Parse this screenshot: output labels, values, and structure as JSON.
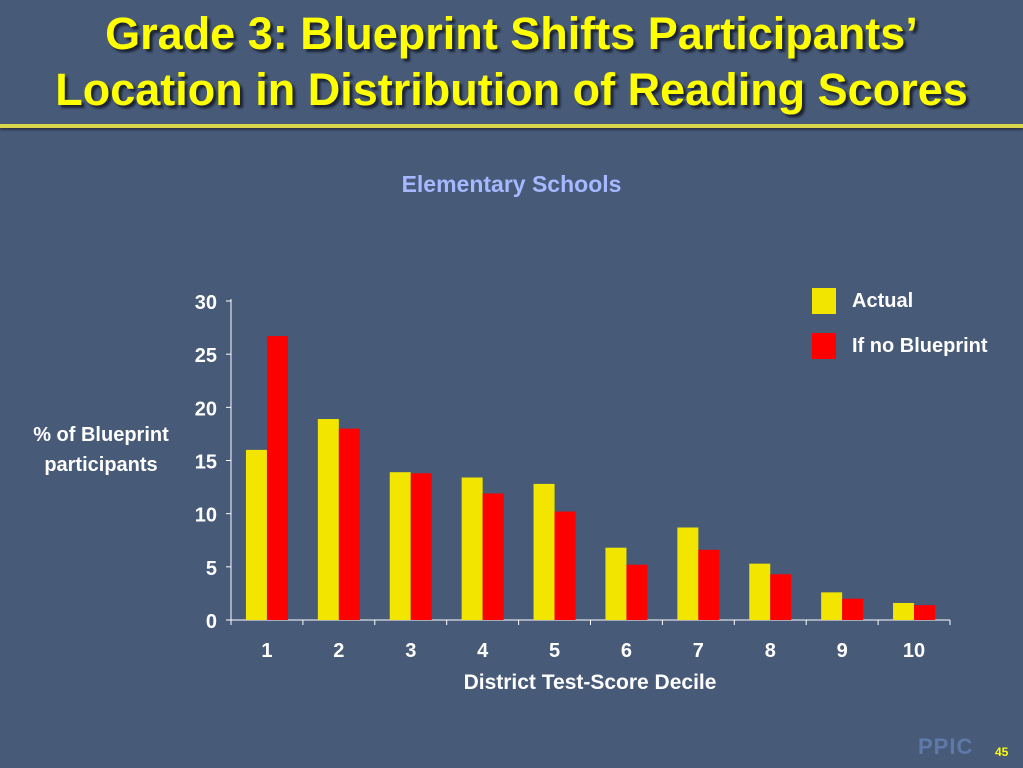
{
  "slide": {
    "title_line1": "Grade 3:  Blueprint Shifts Participants’",
    "title_line2": "Location in Distribution of Reading Scores",
    "logo": "PPIC",
    "number": "45"
  },
  "colors": {
    "background": "#475a78",
    "title": "#ffff00",
    "actual": "#f2e600",
    "no_blueprint": "#ff0000"
  },
  "chart_data": {
    "type": "bar",
    "title": "Elementary Schools",
    "xlabel": "District Test-Score Decile",
    "ylabel": "% of Blueprint participants",
    "categories": [
      "1",
      "2",
      "3",
      "4",
      "5",
      "6",
      "7",
      "8",
      "9",
      "10"
    ],
    "series": [
      {
        "name": "Actual",
        "values": [
          16.0,
          18.9,
          13.9,
          13.4,
          12.8,
          6.8,
          8.7,
          5.3,
          2.6,
          1.6
        ]
      },
      {
        "name": "If no Blueprint",
        "values": [
          26.7,
          18.0,
          13.8,
          11.9,
          10.2,
          5.2,
          6.6,
          4.3,
          2.0,
          1.4
        ]
      }
    ],
    "yticks": [
      "0",
      "5",
      "10",
      "15",
      "20",
      "25",
      "30"
    ],
    "ylim": [
      0,
      30
    ],
    "grid": false,
    "legend_position": "top-right"
  }
}
